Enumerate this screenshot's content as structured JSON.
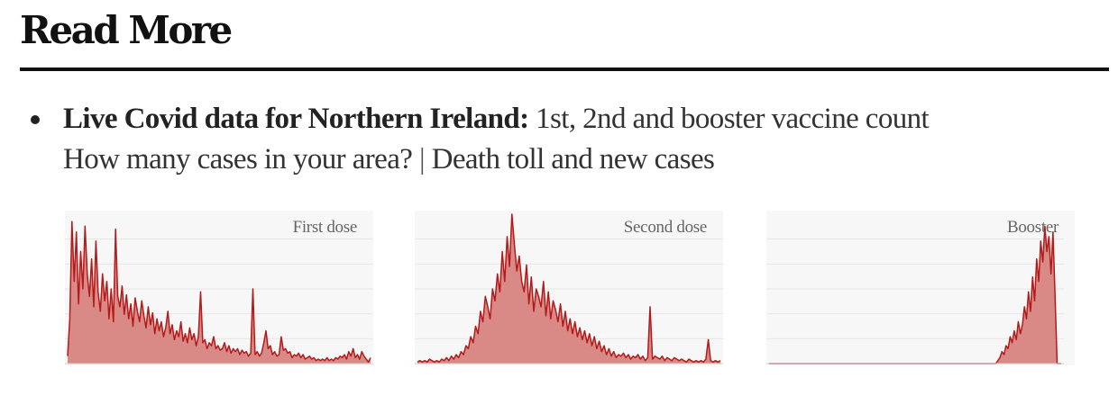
{
  "section": {
    "heading": "Read More"
  },
  "item": {
    "strong_link": "Live Covid data for Northern Ireland:",
    "rest_link": " 1st, 2nd and booster vaccine count",
    "line2_a": "How many cases in your area?",
    "separator": " | ",
    "line2_b": "Death toll and new cases"
  },
  "charts": {
    "fill_color": "#d98a86",
    "line_color": "#b31b1b",
    "grid_color": "#e6e6e6",
    "panels": [
      {
        "label": "First dose"
      },
      {
        "label": "Second dose"
      },
      {
        "label": "Booster"
      }
    ]
  },
  "chart_data": [
    {
      "type": "area",
      "title": "First dose",
      "ylim": [
        0,
        100
      ],
      "values": [
        5,
        30,
        95,
        55,
        88,
        40,
        75,
        50,
        92,
        60,
        45,
        70,
        38,
        82,
        48,
        35,
        60,
        42,
        55,
        30,
        50,
        28,
        90,
        45,
        38,
        52,
        33,
        46,
        30,
        40,
        25,
        44,
        35,
        28,
        42,
        32,
        24,
        38,
        26,
        34,
        20,
        30,
        22,
        28,
        18,
        24,
        35,
        20,
        26,
        16,
        22,
        18,
        28,
        15,
        20,
        14,
        24,
        16,
        20,
        12,
        18,
        48,
        14,
        16,
        10,
        14,
        12,
        18,
        10,
        12,
        9,
        10,
        14,
        8,
        12,
        7,
        10,
        8,
        10,
        6,
        9,
        7,
        8,
        5,
        7,
        50,
        6,
        8,
        5,
        7,
        14,
        22,
        10,
        12,
        6,
        8,
        5,
        6,
        18,
        9,
        10,
        7,
        8,
        4,
        6,
        5,
        7,
        4,
        6,
        3,
        4,
        5,
        3,
        4,
        2,
        3,
        2,
        3,
        2,
        4,
        2,
        3,
        2,
        4,
        3,
        5,
        4,
        6,
        3,
        8,
        5,
        10,
        4,
        6,
        3,
        8,
        5,
        3,
        1,
        4
      ]
    },
    {
      "type": "area",
      "title": "Second dose",
      "ylim": [
        0,
        100
      ],
      "values": [
        1,
        2,
        1,
        2,
        1,
        3,
        2,
        1,
        2,
        1,
        3,
        2,
        4,
        2,
        5,
        3,
        6,
        4,
        8,
        6,
        12,
        10,
        18,
        14,
        25,
        20,
        35,
        28,
        45,
        38,
        30,
        50,
        42,
        60,
        48,
        75,
        55,
        85,
        65,
        100,
        80,
        62,
        72,
        55,
        48,
        66,
        40,
        58,
        35,
        50,
        45,
        38,
        55,
        32,
        48,
        30,
        42,
        36,
        28,
        40,
        25,
        35,
        22,
        30,
        20,
        28,
        18,
        24,
        16,
        22,
        14,
        20,
        12,
        18,
        10,
        15,
        8,
        12,
        6,
        10,
        5,
        8,
        4,
        6,
        5,
        7,
        4,
        6,
        3,
        5,
        4,
        6,
        3,
        5,
        2,
        4,
        38,
        3,
        5,
        4,
        3,
        5,
        2,
        4,
        3,
        2,
        4,
        3,
        2,
        3,
        2,
        1,
        3,
        2,
        1,
        2,
        1,
        2,
        1,
        3,
        16,
        2,
        1,
        2,
        1,
        2
      ]
    },
    {
      "type": "area",
      "title": "Booster",
      "ylim": [
        0,
        100
      ],
      "values": [
        0,
        0,
        0,
        0,
        0,
        0,
        0,
        0,
        0,
        0,
        0,
        0,
        0,
        0,
        0,
        0,
        0,
        0,
        0,
        0,
        0,
        0,
        0,
        0,
        0,
        0,
        0,
        0,
        0,
        0,
        0,
        0,
        0,
        0,
        0,
        0,
        0,
        0,
        0,
        0,
        0,
        0,
        0,
        0,
        0,
        0,
        0,
        0,
        0,
        0,
        0,
        0,
        0,
        0,
        0,
        0,
        0,
        0,
        0,
        0,
        0,
        0,
        0,
        0,
        0,
        0,
        0,
        0,
        0,
        0,
        0,
        0,
        0,
        0,
        0,
        0,
        0,
        0,
        0,
        0,
        0,
        0,
        0,
        0,
        0,
        0,
        0,
        0,
        0,
        0,
        0,
        0,
        0,
        0,
        0,
        0,
        0,
        0,
        0,
        0,
        0,
        0,
        0,
        0,
        0,
        0,
        0,
        0,
        0,
        0,
        0,
        0,
        2,
        4,
        8,
        6,
        12,
        10,
        18,
        14,
        22,
        16,
        28,
        20,
        26,
        38,
        30,
        48,
        35,
        58,
        42,
        70,
        55,
        82,
        68,
        92,
        75,
        85,
        60,
        88,
        45,
        0,
        0,
        0
      ]
    }
  ]
}
